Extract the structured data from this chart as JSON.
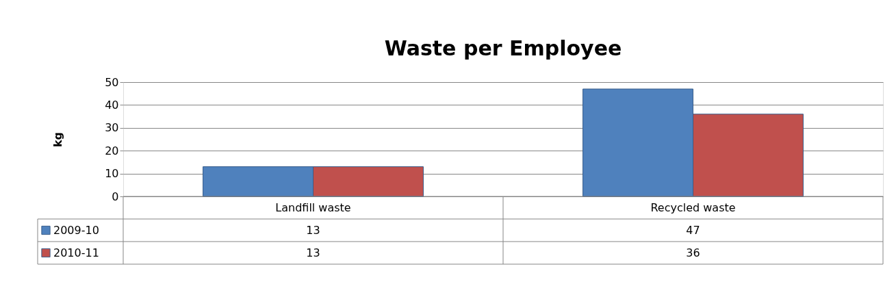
{
  "chart_data": {
    "type": "bar",
    "title": "Waste per Employee",
    "ylabel": "kg",
    "categories": [
      "Landfill waste",
      "Recycled waste"
    ],
    "series": [
      {
        "name": "2009-10",
        "color": "#4f81bd",
        "values": [
          13,
          47
        ]
      },
      {
        "name": "2010-11",
        "color": "#c0504d",
        "values": [
          13,
          36
        ]
      }
    ],
    "ylim": [
      0,
      50
    ],
    "yticks": [
      0,
      10,
      20,
      30,
      40,
      50
    ],
    "grid": "y",
    "data_labels": true,
    "legend": "bottom left"
  }
}
